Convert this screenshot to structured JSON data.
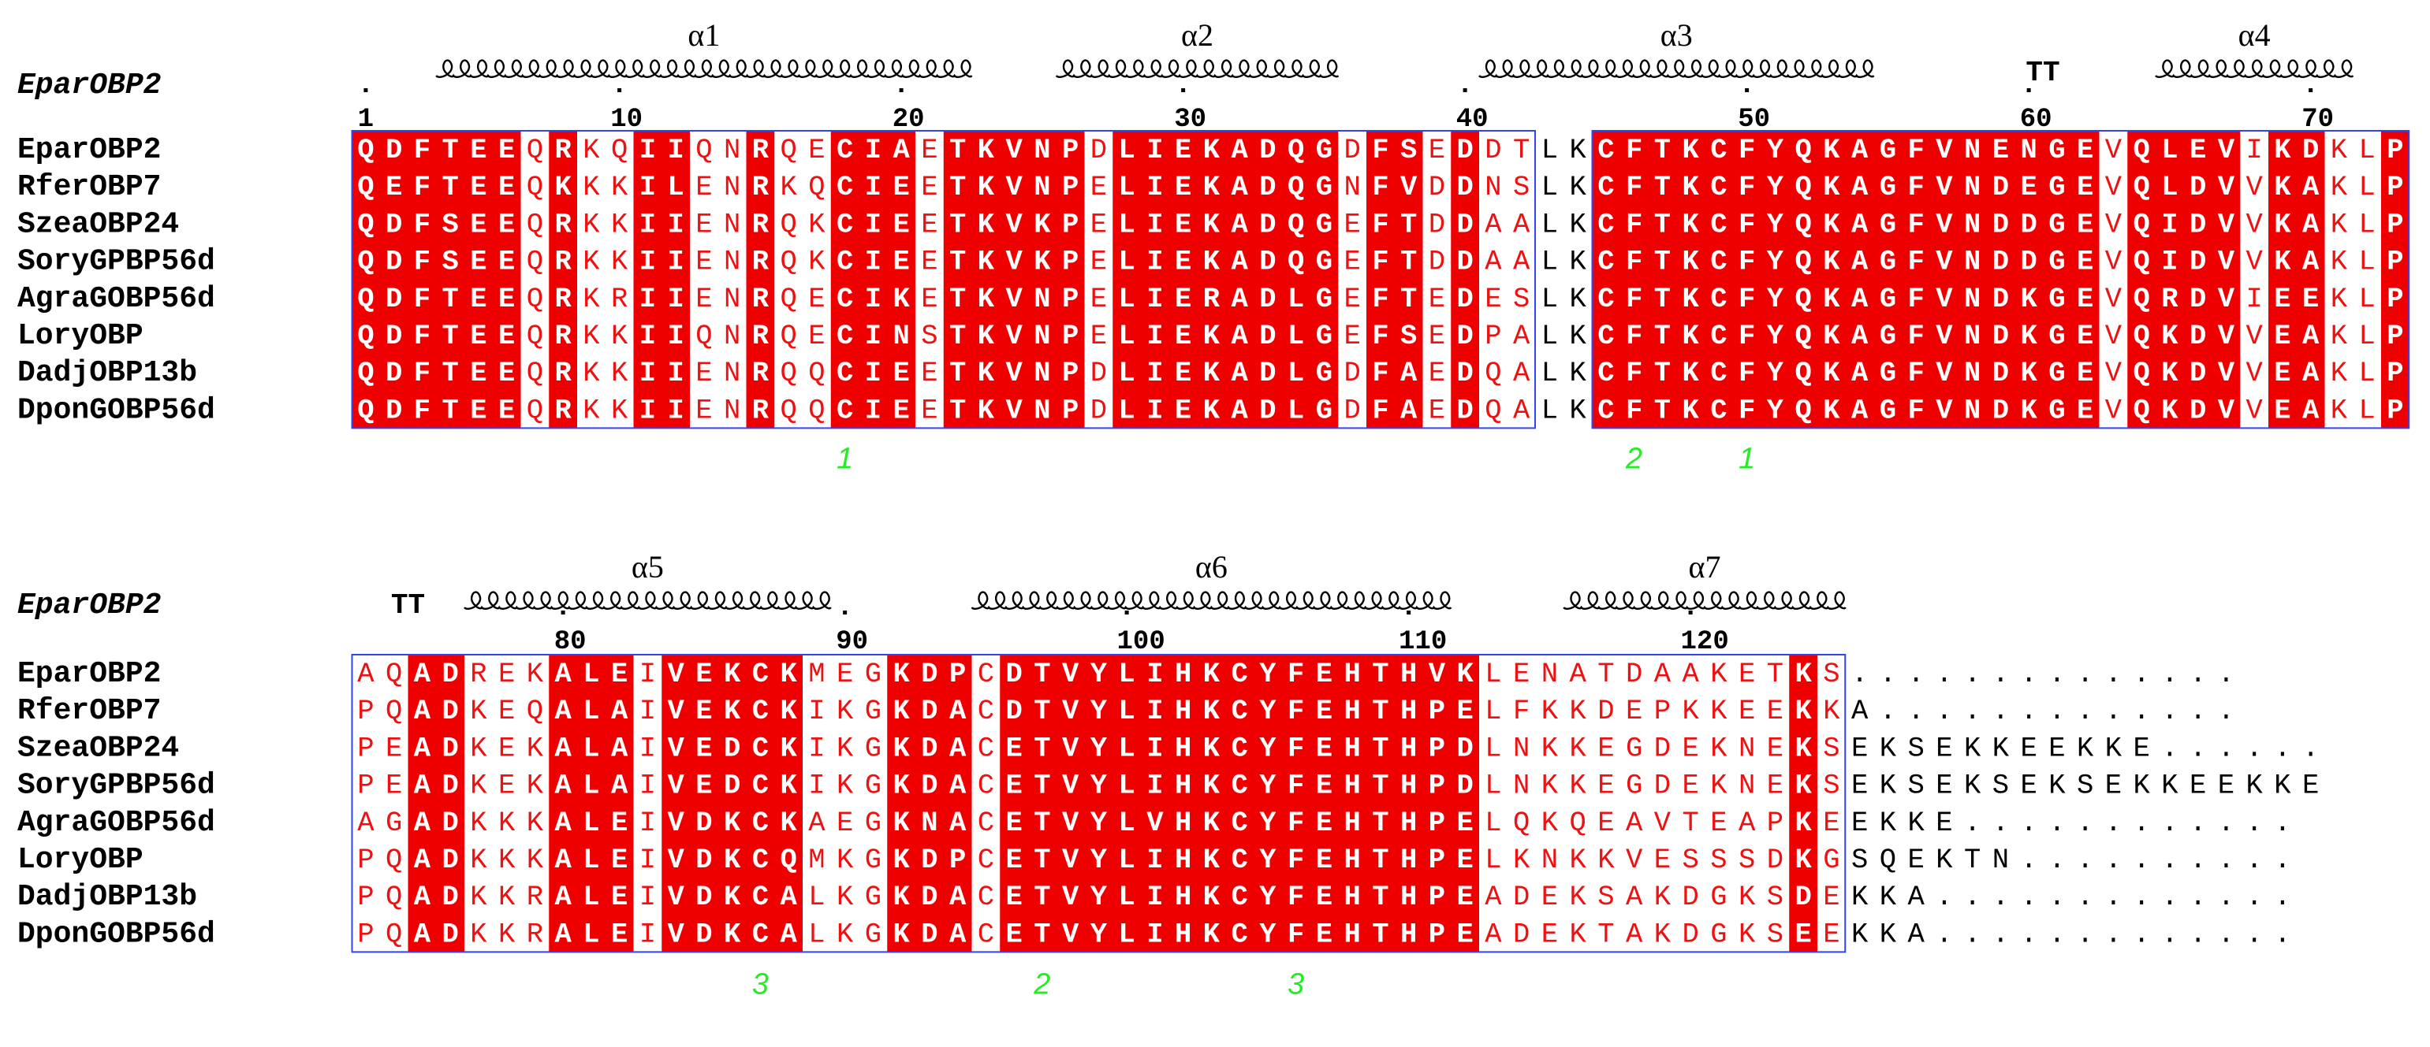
{
  "reference_label": "EparOBP2",
  "names": [
    "EparOBP2",
    "RferOBP7",
    "SzeaOBP24",
    "SoryGPBP56d",
    "AgraGOBP56d",
    "LoryOBP",
    "DadjOBP13b",
    "DponGOBP56d"
  ],
  "blocks": [
    {
      "ticks": [
        {
          "pos": 1,
          "label": "1"
        },
        {
          "pos": 10,
          "label": "10"
        },
        {
          "pos": 20,
          "label": "20"
        },
        {
          "pos": 30,
          "label": "30"
        },
        {
          "pos": 40,
          "label": "40"
        },
        {
          "pos": 50,
          "label": "50"
        },
        {
          "pos": 60,
          "label": "60"
        },
        {
          "pos": 70,
          "label": "70"
        }
      ],
      "helices": [
        {
          "label": "α1",
          "start": 4,
          "end": 22
        },
        {
          "label": "α2",
          "start": 26,
          "end": 35
        },
        {
          "label": "α3",
          "start": 41,
          "end": 54
        },
        {
          "label": "α4",
          "start": 65,
          "end": 71
        }
      ],
      "turns": [
        {
          "label": "TT",
          "pos": 60
        }
      ],
      "bonds": [
        {
          "label": "1",
          "pos": 18
        },
        {
          "label": "2",
          "pos": 46
        },
        {
          "label": "1",
          "pos": 50
        }
      ],
      "sequences": [
        "QDFTEEQRKQIIQNRQECIAETKVNPDLIEKADQGDFSEDDTLKCFTKCFYQKAGFVNENGEVQLEVIKDKLP",
        "QEFTEEQKKKILENRKQCIEETKVNPELIEKADQGNFVDDNSLKCFTKCFYQKAGFVNDEGEVQLDVVKAKLP",
        "QDFSEEQRKKIIENRQKCIEETKVKPELIEKADQGEFTDDAALKCFTKCFYQKAGFVNDDGEVQIDVVKAKLP",
        "QDFSEEQRKKIIENRQKCIEETKVKPELIEKADQGEFTDDAALKCFTKCFYQKAGFVNDDGEVQIDVVKAKLP",
        "QDFTEEQRKRIIENRQECIKETKVNPELIERADLGEFTEDESLKCFTKCFYQKAGFVNDKGEVQRDVIEEKLP",
        "QDFTEEQRKKIIQNRQECINSTKVNPELIEKADLGEFSEDPALKCFTKCFYQKAGFVNDKGEVQKDVVEAKLP",
        "QDFTEEQRKKIIENRQQCIEETKVNPDLIEKADLGDFAEDQALKCFTKCFYQKAGFVNDKGEVQKDVVEAKLP",
        "QDFTEEQRKKIIENRQQCIEETKVNPDLIEKADLGDFAEDQALKCFTKCFYQKAGFVNDKGEVQKDVVEAKLP"
      ],
      "conservation": "IIIIIISIIIISSSSISIIIIIIIIIIIIIIIIISIIIISISNNIIIIIIIIIIIIIIIIISIIIIISISISIII",
      "column_style": "IIIIIISISSIISSISSIIISIIIIISIIIIIIIISIISISSNNIIIIIIIIIIIIIIIIIISIIIISIISSIII"
    },
    {
      "ticks": [
        {
          "pos": 80,
          "label": "80"
        },
        {
          "pos": 90,
          "label": "90"
        },
        {
          "pos": 100,
          "label": "100"
        },
        {
          "pos": 110,
          "label": "110"
        },
        {
          "pos": 120,
          "label": "120"
        }
      ],
      "helices": [
        {
          "label": "α5",
          "start": 77,
          "end": 89
        },
        {
          "label": "α6",
          "start": 95,
          "end": 111
        },
        {
          "label": "α7",
          "start": 116,
          "end": 125
        }
      ],
      "turns": [
        {
          "label": "TT",
          "pos": 74
        }
      ],
      "bonds": [
        {
          "label": "3",
          "pos": 87
        },
        {
          "label": "2",
          "pos": 97
        },
        {
          "label": "3",
          "pos": 106
        }
      ],
      "sequences": [
        "AQADREKALEIVEKCKMEGKDPCDTVYLIHKCYFEHTHVKLENATDAAKETKS..............",
        "PQADKEQALAIVEKCKIKGKDACDTVYLIHKCYFEHTHPELFKKDEPKKEEKKA.............",
        "PEADKEKALAIVEDCKIKGKDACETVYLIHKCYFEHTHPDLNKKEGDEKNEKSEKSEKKEEKKE......",
        "PEADKEKALAIVEDCKIKGKDACETVYLIHKCYFEHTHPDLNKKEGDEKNEKSEKSEKSEKSEKKEEKKE",
        "AGADKKKALEIVDKCKAEGKNACETVYLVHKCYFEHTHPELQKQEAVTEAPKEEKKE............",
        "PQADKKKALEIVDKCQMKGKDPCETVYLIHKCYFEHTHPELKNKKVESSSDKGSQEKTN..........",
        "PQADKKRALEIVDKCALKGKDACETVYLIHKCYFEHTHPEADEKSAKDGKSDEKKA.............",
        "PQADKKRALEIVDKCALKGKDACETVYLIHKCYFEHTHPEADEKTAKDGKSEEKKA............."
      ],
      "column_style": "SSIISSSIIISIIIIISSSIIISIIIIIIIIIIIIIIIIISSSSSSSSSSSISNNNNNNNNNNNNNNNNNN"
    }
  ]
}
